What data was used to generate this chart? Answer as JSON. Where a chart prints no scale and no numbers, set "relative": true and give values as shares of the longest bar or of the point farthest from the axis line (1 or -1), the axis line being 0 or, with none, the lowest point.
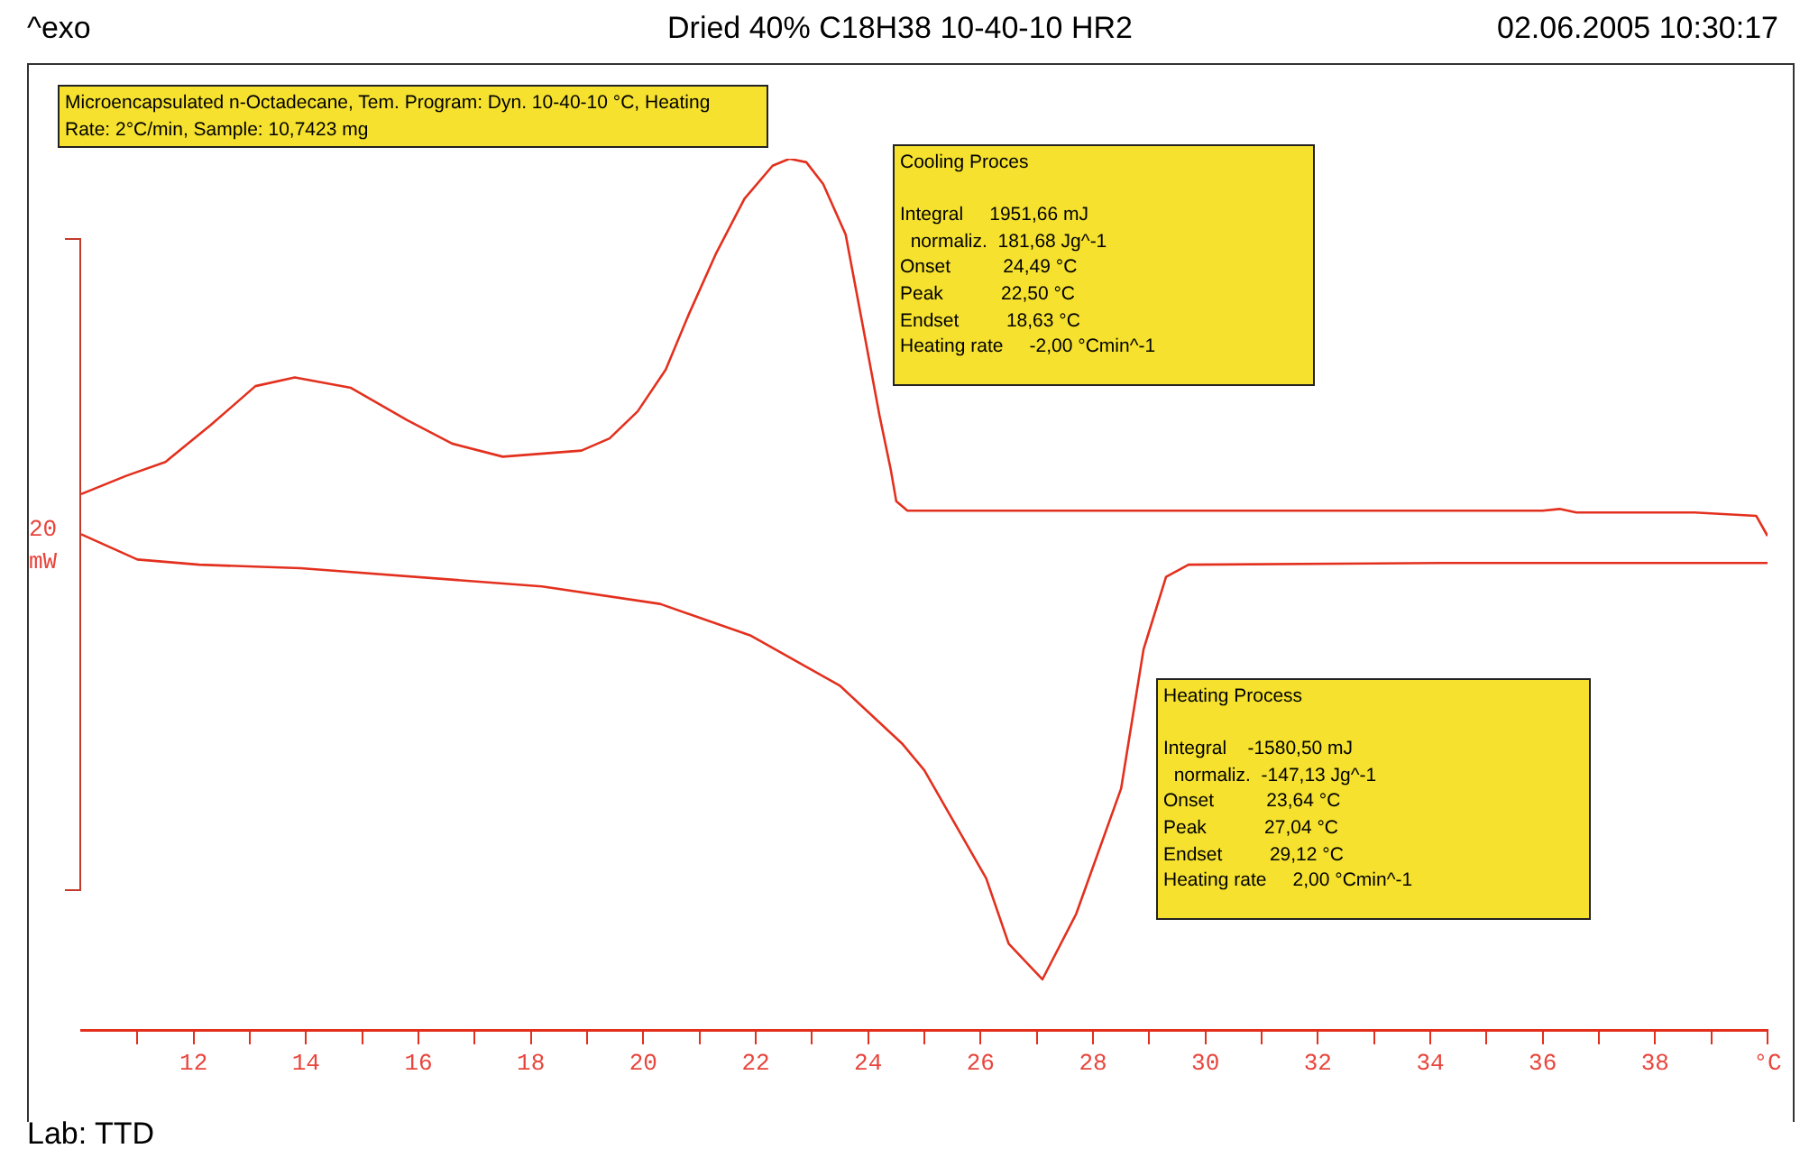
{
  "chart_data": {
    "type": "line",
    "title": "Dried 40% C18H38 10-40-10 HR2",
    "relative": true,
    "marker": "none",
    "line_style": "solid",
    "xlim": [
      10,
      40
    ],
    "xticks": [
      {
        "value": 11,
        "label": null
      },
      12,
      {
        "value": 13,
        "label": null
      },
      14,
      {
        "value": 15,
        "label": null
      },
      16,
      {
        "value": 17,
        "label": null
      },
      18,
      {
        "value": 19,
        "label": null
      },
      20,
      {
        "value": 21,
        "label": null
      },
      22,
      {
        "value": 23,
        "label": null
      },
      24,
      {
        "value": 25,
        "label": null
      },
      26,
      {
        "value": 27,
        "label": null
      },
      28,
      {
        "value": 29,
        "label": null
      },
      30,
      {
        "value": 31,
        "label": null
      },
      32,
      {
        "value": 33,
        "label": null
      },
      34,
      {
        "value": 35,
        "label": null
      },
      36,
      {
        "value": 37,
        "label": null
      },
      38,
      {
        "value": 39,
        "label": null
      },
      {
        "value": 40,
        "label": "°C"
      }
    ],
    "annotations": [
      "^exo",
      "02.06.2005 10:30:17",
      "Lab: TTD",
      "Microencapsulated n-Octadecane, Tem. Program: Dyn. 10-40-10 °C, Heating\nRate: 2°C/min, Sample: 10,7423 mg",
      "Cooling Proces\n\nIntegral     1951,66 mJ\n  normaliz.  181,68 Jg^-1\nOnset          24,49 °C\nPeak           22,50 °C\nEndset         18,63 °C\nHeating rate     -2,00 °Cmin^-1",
      "Heating Process\n\nIntegral    -1580,50 mJ\n  normaliz.  -147,13 Jg^-1\nOnset          23,64 °C\nPeak           27,04 °C\nEndset         29,12 °C\nHeating rate     2,00 °Cmin^-1",
      "20\nmW"
    ],
    "series": [
      {
        "type": "line",
        "color": "#e3301e",
        "x": [
          10.0,
          11.0,
          12.1,
          13.9,
          18.2,
          20.3,
          21.9,
          23.5,
          24.6,
          25.0,
          26.1,
          26.5,
          27.1,
          27.7,
          28.5,
          28.9,
          29.3,
          29.7,
          34.2,
          40.0
        ],
        "values": [
          0.569,
          0.54,
          0.534,
          0.53,
          0.509,
          0.489,
          0.453,
          0.395,
          0.329,
          0.298,
          0.174,
          0.099,
          0.058,
          0.133,
          0.277,
          0.437,
          0.52,
          0.534,
          0.536,
          0.536
        ]
      },
      {
        "type": "line",
        "color": "#e3301e",
        "x": [
          40.0,
          39.8,
          38.7,
          36.6,
          36.3,
          36.0,
          30.0,
          24.7,
          24.5,
          24.4,
          24.2,
          23.9,
          23.6,
          23.2,
          22.9,
          22.6,
          22.3,
          21.8,
          21.3,
          20.8,
          20.4,
          19.9,
          19.4,
          18.9,
          17.5,
          16.6,
          15.8,
          14.8,
          13.8,
          13.1,
          12.3,
          11.5,
          10.8,
          10.0
        ],
        "values": [
          0.567,
          0.59,
          0.594,
          0.594,
          0.598,
          0.596,
          0.596,
          0.596,
          0.607,
          0.644,
          0.706,
          0.81,
          0.913,
          0.971,
          0.996,
          1.0,
          0.992,
          0.954,
          0.892,
          0.82,
          0.758,
          0.71,
          0.679,
          0.665,
          0.658,
          0.673,
          0.7,
          0.737,
          0.749,
          0.739,
          0.694,
          0.652,
          0.636,
          0.615
        ]
      }
    ]
  }
}
